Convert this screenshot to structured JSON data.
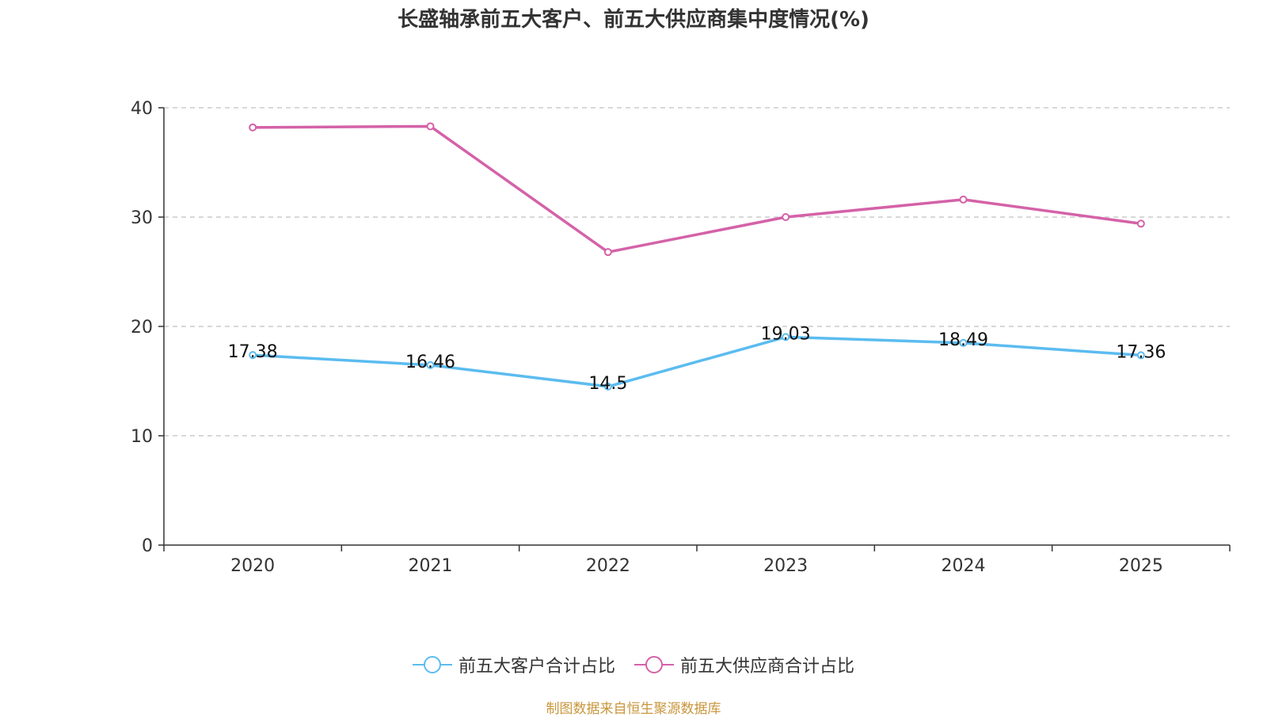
{
  "chart_data": {
    "type": "line",
    "title": "长盛轴承前五大客户、前五大供应商集中度情况(%)",
    "categories": [
      "2020",
      "2021",
      "2022",
      "2023",
      "2024",
      "2025"
    ],
    "series": [
      {
        "name": "前五大客户合计占比",
        "values": [
          17.38,
          16.46,
          14.5,
          19.03,
          18.49,
          17.36
        ],
        "color": "#5bbcf0",
        "show_labels": true
      },
      {
        "name": "前五大供应商合计占比",
        "values": [
          38.2,
          38.3,
          26.8,
          30.0,
          31.6,
          29.4
        ],
        "color": "#d462a8",
        "show_labels": false
      }
    ],
    "ylim": [
      0,
      40
    ],
    "yticks": [
      0,
      10,
      20,
      30,
      40
    ],
    "xlabel": "",
    "ylabel": "",
    "grid": true,
    "legend": "bottom-center",
    "source": "制图数据来自恒生聚源数据库"
  }
}
